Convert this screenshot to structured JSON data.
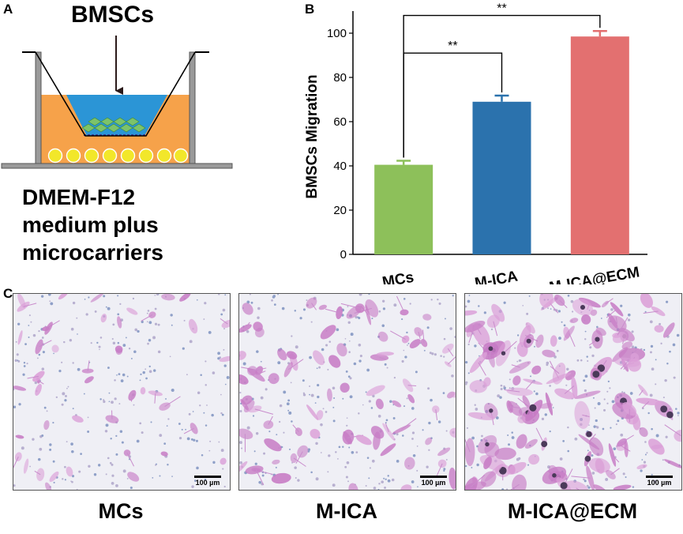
{
  "panel_a": {
    "label": "A",
    "top_text": "BMSCs",
    "medium_lines": [
      "DMEM-F12",
      "medium plus",
      "microcarriers"
    ]
  },
  "panel_b": {
    "label": "B"
  },
  "panel_c": {
    "label": "C",
    "images": [
      {
        "caption": "MCs",
        "scale_label": "100 µm",
        "cell_density": 45
      },
      {
        "caption": "M-ICA",
        "scale_label": "100 µm",
        "cell_density": 80
      },
      {
        "caption": "M-ICA@ECM",
        "scale_label": "100 µm",
        "cell_density": 130
      }
    ]
  },
  "chart_data": {
    "type": "bar",
    "categories": [
      "MCs",
      "M-ICA",
      "M-ICA@ECM"
    ],
    "values": [
      40.5,
      69,
      98.5
    ],
    "errors": [
      1.8,
      2.8,
      2.5
    ],
    "colors": [
      "#8dc05a",
      "#2b72ad",
      "#e37070"
    ],
    "ylabel": "BMSCs Migration",
    "ylim": [
      0,
      110
    ],
    "yticks": [
      0,
      20,
      40,
      60,
      80,
      100
    ],
    "significance": [
      {
        "from": "MCs",
        "to": "M-ICA",
        "label": "**"
      },
      {
        "from": "MCs",
        "to": "M-ICA@ECM",
        "label": "**"
      }
    ]
  }
}
